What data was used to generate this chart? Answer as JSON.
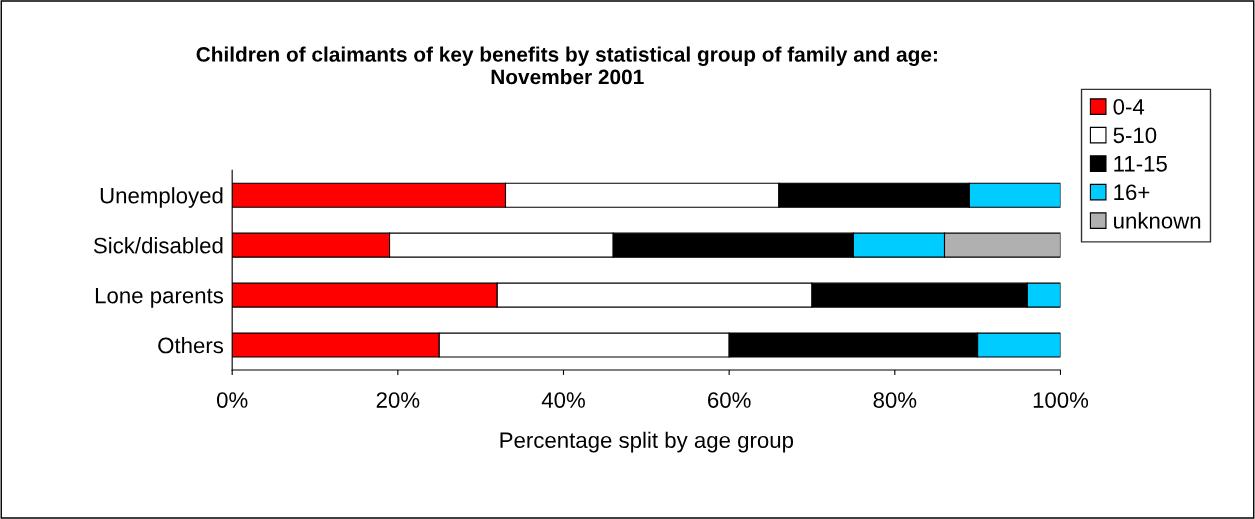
{
  "chart_data": {
    "type": "bar",
    "orientation": "horizontal",
    "stacked": true,
    "title": "Children of claimants of key benefits by statistical group of family and age:\nNovember 2001",
    "xlabel": "Percentage split by age group",
    "categories": [
      "Unemployed",
      "Sick/disabled",
      "Lone parents",
      "Others"
    ],
    "series": [
      {
        "name": "0-4",
        "color": "#ff0000",
        "values": [
          33,
          19,
          32,
          25
        ]
      },
      {
        "name": "5-10",
        "color": "#ffffff",
        "values": [
          33,
          27,
          38,
          35
        ]
      },
      {
        "name": "11-15",
        "color": "#000000",
        "values": [
          23,
          29,
          26,
          30
        ]
      },
      {
        "name": "16+",
        "color": "#00ccff",
        "values": [
          11,
          11,
          4,
          10
        ]
      },
      {
        "name": "unknown",
        "color": "#b0b0b0",
        "values": [
          0,
          14,
          0,
          0
        ]
      }
    ],
    "xlim": [
      0,
      100
    ],
    "xticks": [
      {
        "value": 0,
        "label": "0%"
      },
      {
        "value": 20,
        "label": "20%"
      },
      {
        "value": 40,
        "label": "40%"
      },
      {
        "value": 60,
        "label": "60%"
      },
      {
        "value": 80,
        "label": "80%"
      },
      {
        "value": 100,
        "label": "100%"
      }
    ],
    "grid": false,
    "legend": "right"
  }
}
